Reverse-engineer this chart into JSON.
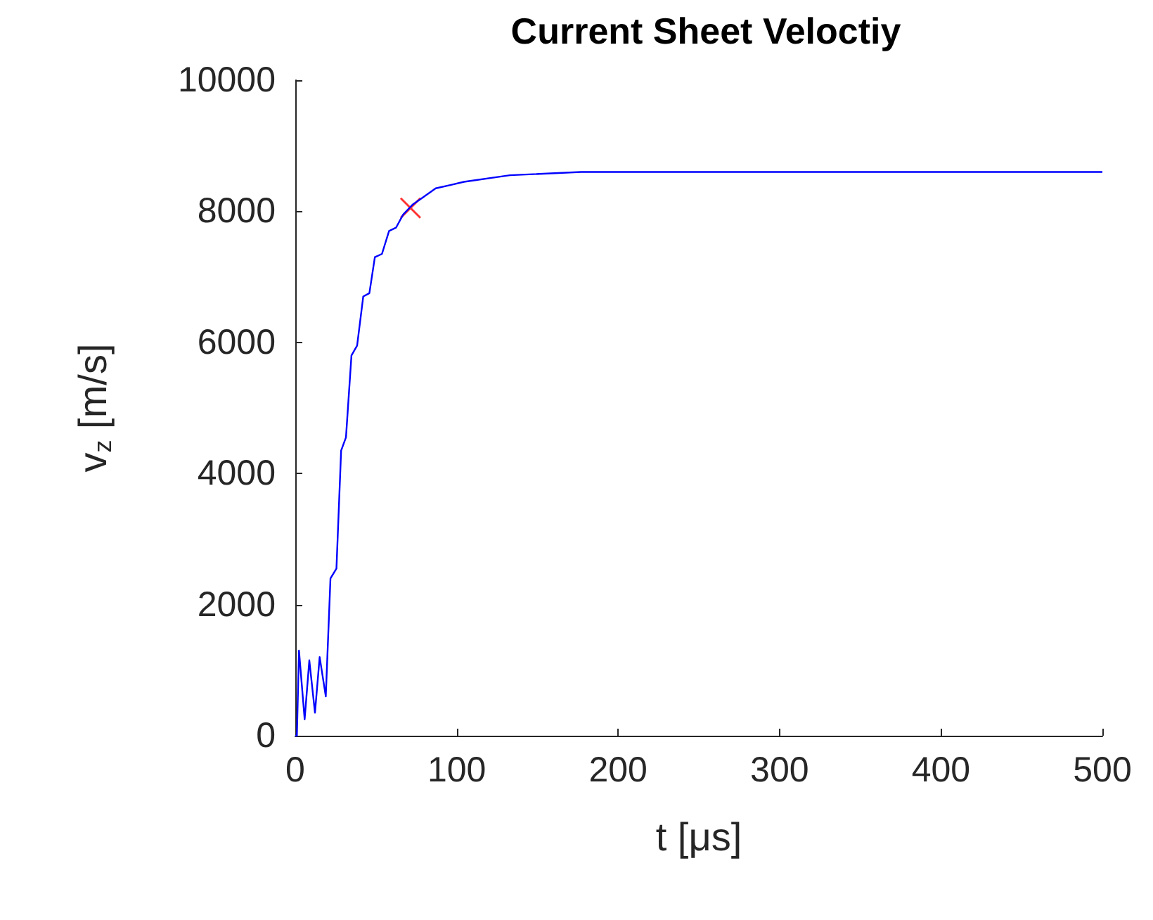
{
  "chart_data": {
    "type": "line",
    "title": "Current Sheet Veloctiy",
    "xlabel": "t [μs]",
    "ylabel": "v$_{z}$ [m/s]",
    "xlim": [
      0,
      500
    ],
    "xticks": [
      0,
      100,
      200,
      300,
      400,
      500
    ],
    "ylim": [
      0,
      10000
    ],
    "yticks": [
      0,
      2000,
      4000,
      6000,
      8000,
      10000
    ],
    "grid": false,
    "marker": "none",
    "series": [
      {
        "color": "#0000ff",
        "x": [
          0,
          1,
          2.3,
          5.8,
          8.7,
          12.2,
          15.1,
          18.9,
          21.8,
          25.5,
          28.4,
          31.4,
          34.8,
          38.3,
          42.1,
          45.9,
          49.3,
          53.7,
          58.1,
          62.4,
          66.8,
          72.6,
          78.4,
          87,
          96,
          104.5,
          133,
          177,
          235,
          300,
          400,
          500
        ],
        "values": [
          0,
          0,
          1300,
          250,
          1150,
          350,
          1200,
          600,
          2400,
          2550,
          4350,
          4550,
          5800,
          5950,
          6700,
          6750,
          7300,
          7350,
          7700,
          7750,
          7950,
          8100,
          8200,
          8350,
          8400,
          8450,
          8550,
          8600,
          8600,
          8600,
          8600,
          8600
        ]
      },
      {
        "type": "scatter",
        "marker": "cross",
        "color": "#ff0000",
        "x": [
          71.4
        ],
        "values": [
          8050
        ]
      }
    ]
  }
}
